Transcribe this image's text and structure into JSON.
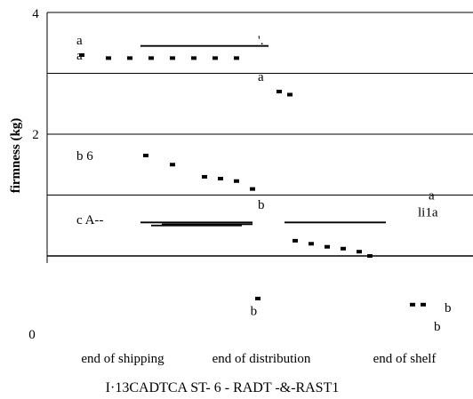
{
  "chart_data": {
    "type": "scatter",
    "ylabel": "firmness (kg)",
    "ylim": [
      0,
      4
    ],
    "yticks": [
      0,
      2,
      4
    ],
    "grid": [
      1,
      2,
      3,
      4
    ],
    "categories": [
      "end of shipping",
      "end of distribution",
      "end of shelf"
    ],
    "legend": "I·13CADTCA ST- 6 - RADT -&-RAST1",
    "series": [
      {
        "points": [
          {
            "x": 0.1,
            "y": 3.3
          },
          {
            "x": 0.35,
            "y": 3.25
          },
          {
            "x": 0.55,
            "y": 3.25
          },
          {
            "x": 0.75,
            "y": 3.25
          },
          {
            "x": 0.95,
            "y": 3.25
          },
          {
            "x": 1.15,
            "y": 3.25
          },
          {
            "x": 1.35,
            "y": 3.25
          },
          {
            "x": 1.55,
            "y": 3.25
          }
        ]
      },
      {
        "points": [
          {
            "x": 0.7,
            "y": 1.65
          },
          {
            "x": 0.95,
            "y": 1.5
          },
          {
            "x": 1.25,
            "y": 1.3
          },
          {
            "x": 1.4,
            "y": 1.27
          },
          {
            "x": 1.55,
            "y": 1.23
          },
          {
            "x": 1.7,
            "y": 1.1
          }
        ]
      },
      {
        "points": [
          {
            "x": 1.95,
            "y": 2.7
          },
          {
            "x": 2.05,
            "y": 2.65
          }
        ]
      },
      {
        "points": [
          {
            "x": 2.1,
            "y": 0.25
          },
          {
            "x": 2.25,
            "y": 0.2
          },
          {
            "x": 2.4,
            "y": 0.15
          },
          {
            "x": 2.55,
            "y": 0.12
          },
          {
            "x": 2.7,
            "y": 0.07
          },
          {
            "x": 2.8,
            "y": 0.0
          }
        ]
      },
      {
        "points": [
          {
            "x": 1.75,
            "y": -0.7
          },
          {
            "x": 3.2,
            "y": -0.8
          },
          {
            "x": 3.3,
            "y": -0.8
          }
        ]
      }
    ],
    "lines": [
      {
        "x1": 0.65,
        "x2": 1.85,
        "y": 3.45
      },
      {
        "x1": 0.65,
        "x2": 1.7,
        "y": 0.55
      },
      {
        "x1": 0.75,
        "x2": 1.6,
        "y": 0.5
      },
      {
        "x1": 0.85,
        "x2": 1.7,
        "y": 0.52
      },
      {
        "x1": 2.0,
        "x2": 2.95,
        "y": 0.55
      }
    ],
    "annotations": [
      {
        "text": "a",
        "x": 0.05,
        "y": 3.55
      },
      {
        "text": "a",
        "x": 0.05,
        "y": 3.3
      },
      {
        "text": "'.",
        "x": 1.75,
        "y": 3.55
      },
      {
        "text": "a",
        "x": 1.75,
        "y": 2.95
      },
      {
        "text": "b 6",
        "x": 0.05,
        "y": 1.65
      },
      {
        "text": "b",
        "x": 1.75,
        "y": 0.85
      },
      {
        "text": "c A--",
        "x": 0.05,
        "y": 0.6
      },
      {
        "text": "a",
        "x": 3.35,
        "y": 1.0
      },
      {
        "text": "li1a",
        "x": 3.25,
        "y": 0.72
      },
      {
        "text": "b",
        "x": 1.68,
        "y": -0.9
      },
      {
        "text": "b",
        "x": 3.5,
        "y": -0.85
      },
      {
        "text": "b",
        "x": 3.4,
        "y": -1.15
      }
    ]
  }
}
